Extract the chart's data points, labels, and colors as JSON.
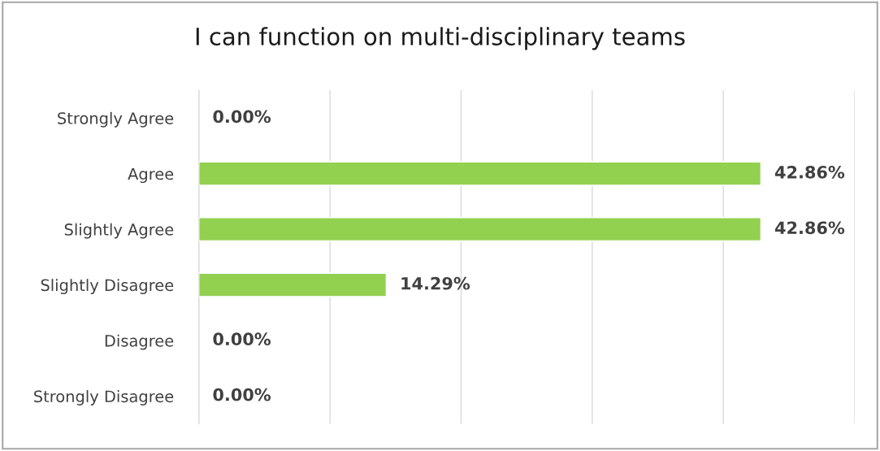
{
  "chart_data": {
    "type": "bar",
    "orientation": "horizontal",
    "title": "I can function on multi-disciplinary teams",
    "categories": [
      "Strongly Agree",
      "Agree",
      "Slightly Agree",
      "Slightly Disagree",
      "Disagree",
      "Strongly Disagree"
    ],
    "values": [
      0.0,
      42.86,
      42.86,
      14.29,
      0.0,
      0.0
    ],
    "value_labels": [
      "0.00%",
      "42.86%",
      "42.86%",
      "14.29%",
      "0.00%",
      "0.00%"
    ],
    "color": "#92d050",
    "xlim": [
      0,
      50
    ],
    "xticks": [
      {
        "value": 0,
        "label": null
      },
      {
        "value": 10,
        "label": null
      },
      {
        "value": 20,
        "label": null
      },
      {
        "value": 30,
        "label": null
      },
      {
        "value": 40,
        "label": null
      },
      {
        "value": 50,
        "label": null
      }
    ],
    "tick_labels": "y",
    "grid": "x"
  }
}
